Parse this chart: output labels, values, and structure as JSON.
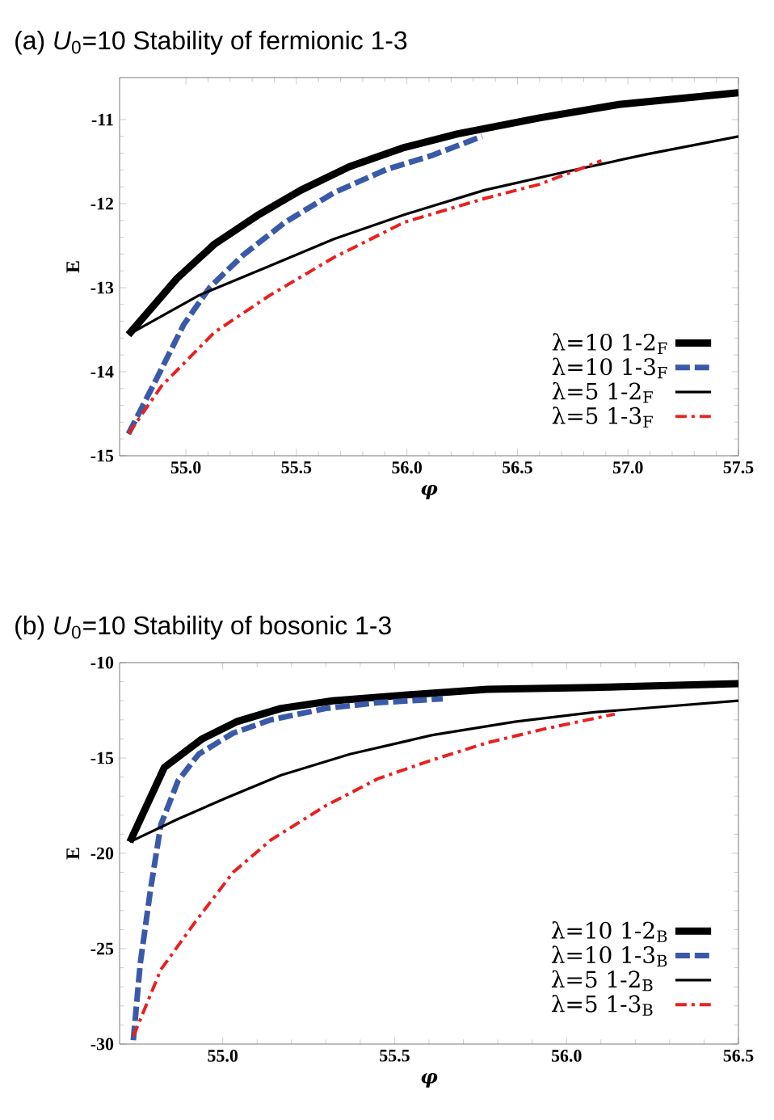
{
  "chart_data": [
    {
      "type": "line",
      "title": "(a) *U*$_{0}$=10   Stability of fermionic 1-3",
      "xlabel": "φ",
      "ylabel": "E",
      "xlim": [
        54.7,
        57.5
      ],
      "ylim": [
        -15,
        -10.5
      ],
      "xticks": [
        {
          "value": 55,
          "label": "55.0"
        },
        {
          "value": 55.5,
          "label": "55.5"
        },
        {
          "value": 56,
          "label": "56.0"
        },
        {
          "value": 56.5,
          "label": "56.5"
        },
        {
          "value": 57,
          "label": "57.0"
        },
        {
          "value": 57.5,
          "label": "57.5"
        }
      ],
      "yticks": [
        -15,
        -14,
        -13,
        -12,
        -11
      ],
      "legend": "bottom right",
      "marker": "none",
      "grid": false,
      "series": [
        {
          "name": "λ=10  1-2$_{F}$",
          "color": "#000000",
          "line_style": "solid",
          "x": [
            54.74,
            54.96,
            55.13,
            55.33,
            55.52,
            55.74,
            55.99,
            56.23,
            56.6,
            56.96,
            57.5
          ],
          "values": [
            -13.56,
            -12.89,
            -12.48,
            -12.13,
            -11.84,
            -11.56,
            -11.33,
            -11.17,
            -10.98,
            -10.82,
            -10.68
          ]
        },
        {
          "name": "λ=10  1-3$_{F}$",
          "color": "#3a5aa8",
          "line_style": "dashed",
          "x": [
            54.74,
            54.87,
            54.99,
            55.11,
            55.26,
            55.45,
            55.67,
            55.91,
            56.11,
            56.34
          ],
          "values": [
            -14.74,
            -14.07,
            -13.44,
            -12.99,
            -12.61,
            -12.22,
            -11.87,
            -11.59,
            -11.43,
            -11.2
          ]
        },
        {
          "name": "λ=5  1-2$_{F}$",
          "color": "#000000",
          "line_style": "solid",
          "x": [
            54.74,
            55.06,
            55.38,
            55.67,
            55.99,
            56.35,
            56.72,
            57.09,
            57.5
          ],
          "values": [
            -13.56,
            -13.09,
            -12.74,
            -12.42,
            -12.13,
            -11.84,
            -11.62,
            -11.41,
            -11.2
          ]
        },
        {
          "name": "λ=5  1-3$_{F}$",
          "color": "#e8211f",
          "line_style": "dashdot",
          "x": [
            54.74,
            54.89,
            55.13,
            55.38,
            55.67,
            55.99,
            56.35,
            56.6,
            56.88
          ],
          "values": [
            -14.74,
            -14.17,
            -13.53,
            -13.09,
            -12.64,
            -12.22,
            -11.94,
            -11.77,
            -11.49
          ]
        }
      ]
    },
    {
      "type": "line",
      "title": "(b) *U*$_{0}$=10   Stability of bosonic 1-3",
      "xlabel": "φ",
      "ylabel": "E",
      "xlim": [
        54.7,
        56.5
      ],
      "ylim": [
        -30,
        -10
      ],
      "xticks": [
        {
          "value": 55,
          "label": "55.0"
        },
        {
          "value": 55.5,
          "label": "55.5"
        },
        {
          "value": 56,
          "label": "56.0"
        },
        {
          "value": 56.5,
          "label": "56.5"
        }
      ],
      "yticks": [
        -30,
        -25,
        -20,
        -15,
        -10
      ],
      "legend": "bottom right",
      "marker": "none",
      "grid": false,
      "series": [
        {
          "name": "λ=10  1-2$_{B}$",
          "color": "#000000",
          "line_style": "solid",
          "x": [
            54.73,
            54.83,
            54.94,
            55.04,
            55.17,
            55.32,
            55.53,
            55.77,
            56.08,
            56.5
          ],
          "values": [
            -19.4,
            -15.5,
            -14,
            -13.1,
            -12.4,
            -12,
            -11.7,
            -11.4,
            -11.3,
            -11.1
          ]
        },
        {
          "name": "λ=10  1-3$_{B}$",
          "color": "#3a5aa8",
          "line_style": "dashed",
          "x": [
            54.74,
            54.76,
            54.79,
            54.82,
            54.87,
            54.93,
            55.03,
            55.14,
            55.3,
            55.45,
            55.64
          ],
          "values": [
            -29.8,
            -25.8,
            -21.9,
            -18.5,
            -16.2,
            -14.8,
            -13.7,
            -13,
            -12.4,
            -12.1,
            -11.9
          ]
        },
        {
          "name": "λ=5  1-2$_{B}$",
          "color": "#000000",
          "line_style": "solid",
          "x": [
            54.73,
            54.87,
            55.01,
            55.17,
            55.37,
            55.61,
            55.85,
            56.08,
            56.5
          ],
          "values": [
            -19.4,
            -18.2,
            -17.1,
            -15.9,
            -14.8,
            -13.8,
            -13.1,
            -12.6,
            -12
          ]
        },
        {
          "name": "λ=5  1-3$_{B}$",
          "color": "#e8211f",
          "line_style": "dashdot",
          "x": [
            54.74,
            54.82,
            54.92,
            55.03,
            55.14,
            55.3,
            55.45,
            55.61,
            55.77,
            55.93,
            56.14
          ],
          "values": [
            -29.6,
            -26.1,
            -23.6,
            -21,
            -19.3,
            -17.5,
            -16.1,
            -15.1,
            -14.2,
            -13.5,
            -12.7
          ]
        }
      ]
    }
  ]
}
